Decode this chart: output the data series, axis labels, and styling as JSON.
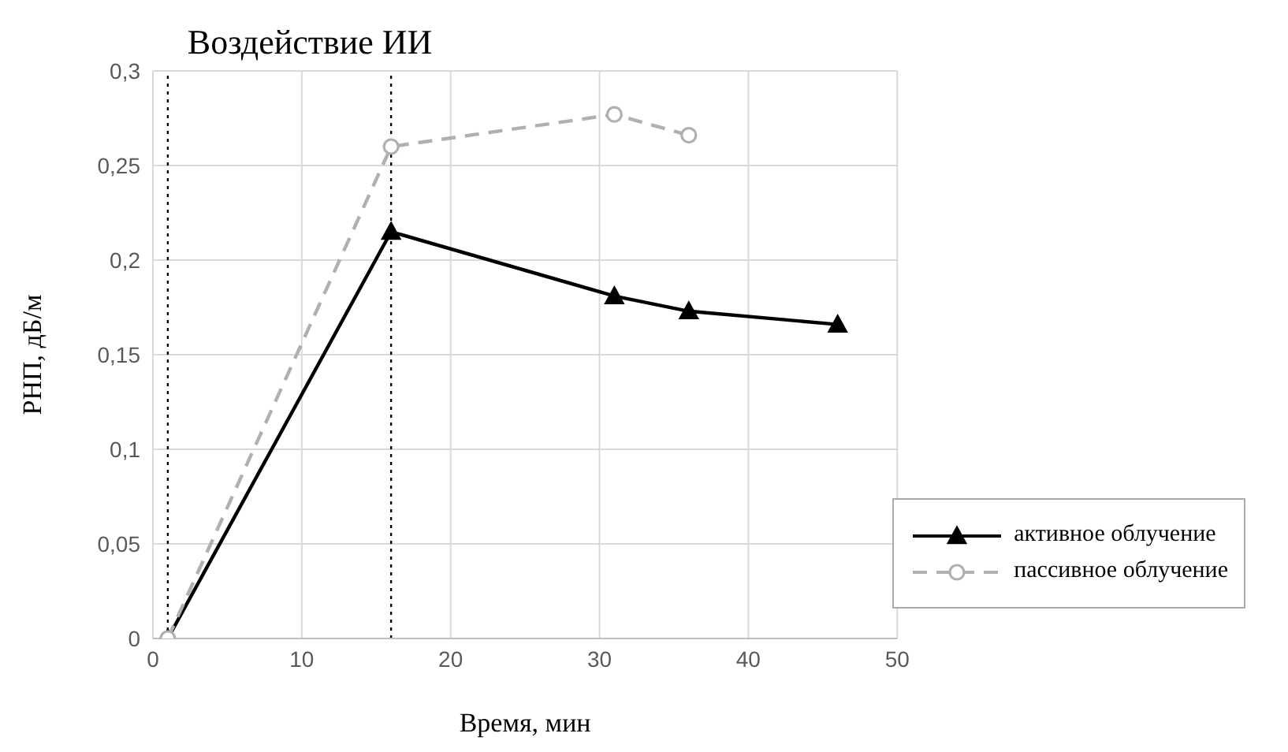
{
  "chart_data": {
    "type": "line",
    "xlabel": "Время, мин",
    "ylabel": "РНП, дБ/м",
    "annotations": [
      "Воздействие ИИ"
    ],
    "xlim": [
      0,
      50
    ],
    "xticks": [
      0,
      10,
      20,
      30,
      40,
      50
    ],
    "ylim": [
      0,
      0.3
    ],
    "yticks": [
      {
        "value": 0,
        "label": "0"
      },
      {
        "value": 0.05,
        "label": "0,05"
      },
      {
        "value": 0.1,
        "label": "0,1"
      },
      {
        "value": 0.15,
        "label": "0,15"
      },
      {
        "value": 0.2,
        "label": "0,2"
      },
      {
        "value": 0.25,
        "label": "0,25"
      },
      {
        "value": 0.3,
        "label": "0,3"
      }
    ],
    "grid": true,
    "legend": "bottom right",
    "ref_lines": [
      {
        "axis": "x",
        "value": 1,
        "color": "#000000",
        "line_style": "dotted"
      },
      {
        "axis": "x",
        "value": 16,
        "color": "#000000",
        "line_style": "dotted"
      }
    ],
    "series": [
      {
        "name": "активное облучение",
        "color": "#000000",
        "marker": "triangle",
        "line_style": "solid",
        "x": [
          1,
          16,
          31,
          36,
          46
        ],
        "values": [
          0,
          0.215,
          0.181,
          0.173,
          0.166
        ]
      },
      {
        "name": "пассивное облучение",
        "color": "#b0b0b0",
        "marker": "circle",
        "line_style": "dashed",
        "x": [
          1,
          16,
          31,
          36
        ],
        "values": [
          0,
          0.26,
          0.277,
          0.266
        ]
      }
    ]
  }
}
